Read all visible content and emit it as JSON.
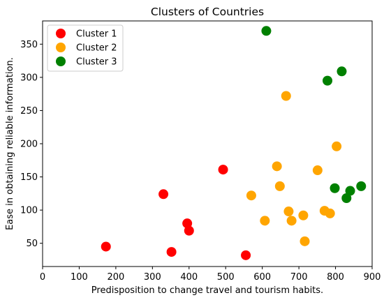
{
  "chart_data": {
    "type": "scatter",
    "title": "Clusters of Countries",
    "xlabel": "Predisposition to change travel and tourism habits.",
    "ylabel": "Ease in obtaining reliable information.",
    "xlim": [
      0,
      900
    ],
    "ylim": [
      15,
      385
    ],
    "xticks": [
      0,
      100,
      200,
      300,
      400,
      500,
      600,
      700,
      800,
      900
    ],
    "yticks": [
      50,
      100,
      150,
      200,
      250,
      300,
      350
    ],
    "grid": false,
    "legend_position": "top-left",
    "series": [
      {
        "name": "Cluster 1",
        "color": "#ff0000",
        "points": [
          [
            173,
            45
          ],
          [
            330,
            124
          ],
          [
            352,
            37
          ],
          [
            395,
            80
          ],
          [
            400,
            69
          ],
          [
            493,
            161
          ],
          [
            555,
            32
          ]
        ]
      },
      {
        "name": "Cluster 2",
        "color": "#ffa500",
        "points": [
          [
            570,
            122
          ],
          [
            607,
            84
          ],
          [
            640,
            166
          ],
          [
            648,
            136
          ],
          [
            665,
            272
          ],
          [
            672,
            98
          ],
          [
            680,
            84
          ],
          [
            712,
            92
          ],
          [
            716,
            53
          ],
          [
            751,
            160
          ],
          [
            770,
            99
          ],
          [
            785,
            95
          ],
          [
            803,
            196
          ]
        ]
      },
      {
        "name": "Cluster 3",
        "color": "#008000",
        "points": [
          [
            611,
            370
          ],
          [
            778,
            295
          ],
          [
            798,
            133
          ],
          [
            817,
            309
          ],
          [
            830,
            118
          ],
          [
            840,
            129
          ],
          [
            870,
            136
          ]
        ]
      }
    ]
  }
}
